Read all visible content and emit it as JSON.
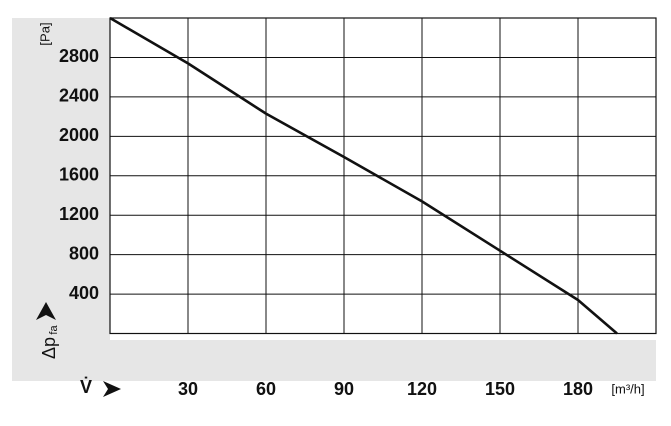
{
  "chart_data": {
    "type": "line",
    "x_label": "V̇",
    "x_unit": "[m³/h]",
    "y_label": "Δp",
    "y_label_sub": "fa",
    "y_unit": "[Pa]",
    "x": [
      0,
      30,
      60,
      90,
      120,
      150,
      180,
      195
    ],
    "series": [
      {
        "name": "Δp",
        "color": "#111111",
        "values": [
          3200,
          2740,
          2230,
          1790,
          1340,
          840,
          340,
          0
        ]
      }
    ],
    "xlim": [
      0,
      210
    ],
    "xticks": [
      30,
      60,
      90,
      120,
      150,
      180
    ],
    "ylim": [
      0,
      3200
    ],
    "yticks": [
      400,
      800,
      1200,
      1600,
      2000,
      2400,
      2800
    ],
    "grid": true
  }
}
